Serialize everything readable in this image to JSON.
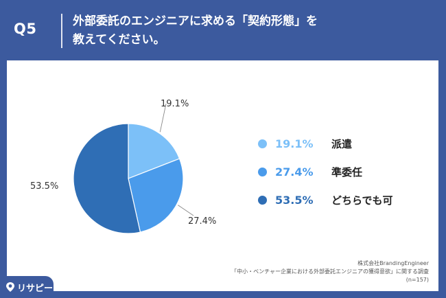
{
  "header": {
    "question_label": "Q5",
    "title_line1": "外部委託のエンジニアに求める「契約形態」を",
    "title_line2": "教えてください。"
  },
  "chart_data": {
    "type": "pie",
    "categories": [
      "派遣",
      "準委任",
      "どちらでも可"
    ],
    "values": [
      19.1,
      27.4,
      53.5
    ],
    "value_labels": [
      "19.1%",
      "27.4%",
      "53.5%"
    ],
    "colors": [
      "#7CC0F8",
      "#4A9BEB",
      "#2F6EB5"
    ],
    "legend_placement": "right"
  },
  "source": {
    "line1": "株式会社BrandingEngineer",
    "line2": "「中小・ベンチャー企業における外部委託エンジニアの獲得意欲」に関する調査",
    "line3": "(n=157)"
  },
  "logo": {
    "text": "リサピー"
  }
}
